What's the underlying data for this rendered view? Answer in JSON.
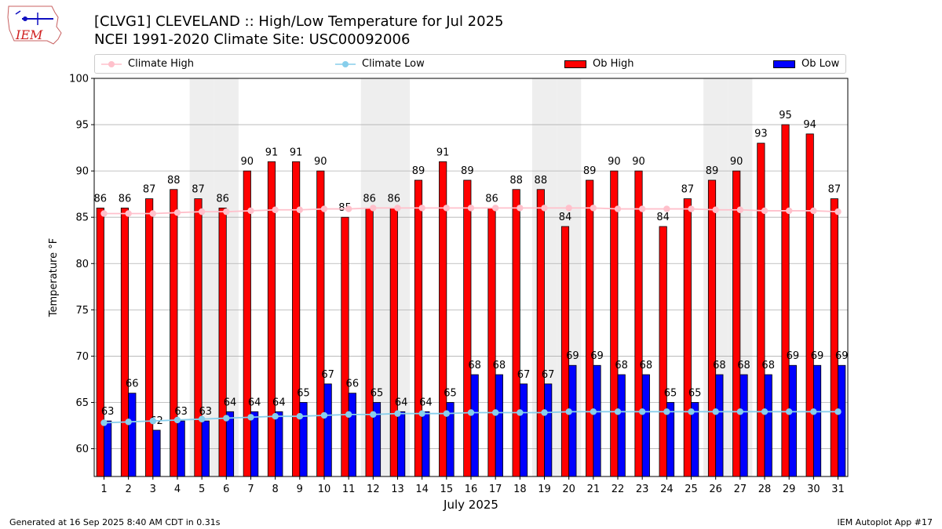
{
  "header": {
    "title_line1": "[CLVG1] CLEVELAND :: High/Low Temperature for Jul 2025",
    "title_line2": "NCEI 1991-2020 Climate Site: USC00092006"
  },
  "logo": {
    "text": "IEM"
  },
  "legend": {
    "climate_high": "Climate High",
    "climate_low": "Climate Low",
    "ob_high": "Ob High",
    "ob_low": "Ob Low"
  },
  "footer": {
    "left": "Generated at 16 Sep 2025 8:40 AM CDT in 0.31s",
    "right": "IEM Autoplot App #17"
  },
  "colors": {
    "ob_high": "#ff0000",
    "ob_low": "#0000ff",
    "climate_high": "#ffc0cb",
    "climate_low": "#87ceeb",
    "weekend_band": "#eeeeee",
    "grid": "#b0b0b0"
  },
  "chart_data": {
    "type": "bar",
    "xlabel": "July 2025",
    "ylabel": "Temperature °F",
    "ylim": [
      57,
      100
    ],
    "yticks": [
      60,
      65,
      70,
      75,
      80,
      85,
      90,
      95,
      100
    ],
    "grid": "horizontal",
    "legend_position": "top",
    "categories": [
      "1",
      "2",
      "3",
      "4",
      "5",
      "6",
      "7",
      "8",
      "9",
      "10",
      "11",
      "12",
      "13",
      "14",
      "15",
      "16",
      "17",
      "18",
      "19",
      "20",
      "21",
      "22",
      "23",
      "24",
      "25",
      "26",
      "27",
      "28",
      "29",
      "30",
      "31"
    ],
    "shaded_weekend_days": [
      5,
      6,
      12,
      13,
      19,
      20,
      26,
      27
    ],
    "series": [
      {
        "name": "Ob High",
        "kind": "bar",
        "values": [
          86,
          86,
          87,
          88,
          87,
          86,
          90,
          91,
          91,
          90,
          85,
          86,
          86,
          89,
          91,
          89,
          86,
          88,
          88,
          84,
          89,
          90,
          90,
          84,
          87,
          89,
          90,
          93,
          95,
          94,
          87
        ]
      },
      {
        "name": "Ob Low",
        "kind": "bar",
        "values": [
          63,
          66,
          62,
          63,
          63,
          64,
          64,
          64,
          65,
          67,
          66,
          65,
          64,
          64,
          65,
          68,
          68,
          67,
          67,
          69,
          69,
          68,
          68,
          65,
          65,
          68,
          68,
          68,
          69,
          69,
          69
        ]
      },
      {
        "name": "Climate High",
        "kind": "line",
        "values": [
          85.4,
          85.4,
          85.4,
          85.5,
          85.6,
          85.6,
          85.7,
          85.8,
          85.8,
          85.9,
          85.9,
          86.0,
          86.0,
          86.0,
          86.0,
          86.0,
          86.0,
          86.0,
          86.0,
          86.0,
          86.0,
          85.9,
          85.9,
          85.9,
          85.9,
          85.8,
          85.8,
          85.7,
          85.7,
          85.7,
          85.6
        ]
      },
      {
        "name": "Climate Low",
        "kind": "line",
        "values": [
          62.8,
          62.9,
          63.0,
          63.1,
          63.2,
          63.3,
          63.4,
          63.5,
          63.5,
          63.6,
          63.7,
          63.7,
          63.8,
          63.8,
          63.8,
          63.9,
          63.9,
          63.9,
          63.9,
          64.0,
          64.0,
          64.0,
          64.0,
          64.0,
          64.0,
          64.0,
          64.0,
          64.0,
          64.0,
          64.0,
          64.0
        ]
      }
    ]
  }
}
